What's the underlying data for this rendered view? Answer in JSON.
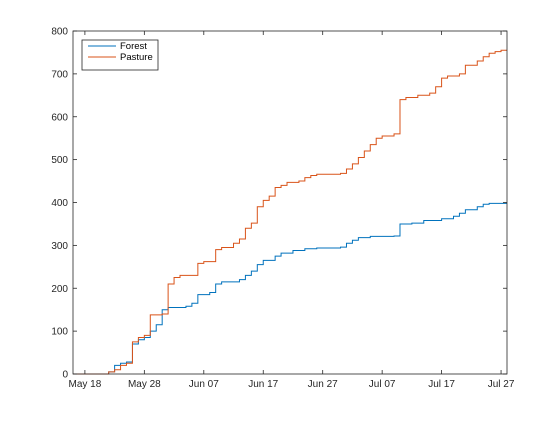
{
  "chart_data": {
    "type": "line",
    "step": true,
    "x_tick_labels": [
      "May 18",
      "May 28",
      "Jun 07",
      "Jun 17",
      "Jun 27",
      "Jul 07",
      "Jul 17",
      "Jul 27"
    ],
    "x_tick_dates": [
      "2015-05-18",
      "2015-05-28",
      "2015-06-07",
      "2015-06-17",
      "2015-06-27",
      "2015-07-07",
      "2015-07-17",
      "2015-07-27"
    ],
    "xlim": [
      "2015-05-16",
      "2015-07-28"
    ],
    "y_ticks": [
      0,
      100,
      200,
      300,
      400,
      500,
      600,
      700,
      800
    ],
    "ylim": [
      0,
      800
    ],
    "grid": false,
    "legend_position": "top-left",
    "series": [
      {
        "name": "Forest",
        "color": "#0072BD",
        "points": [
          [
            "2015-05-16",
            0
          ],
          [
            "2015-05-21",
            0
          ],
          [
            "2015-05-22",
            5
          ],
          [
            "2015-05-23",
            20
          ],
          [
            "2015-05-24",
            25
          ],
          [
            "2015-05-25",
            28
          ],
          [
            "2015-05-26",
            70
          ],
          [
            "2015-05-27",
            80
          ],
          [
            "2015-05-28",
            85
          ],
          [
            "2015-05-29",
            100
          ],
          [
            "2015-05-30",
            115
          ],
          [
            "2015-05-31",
            150
          ],
          [
            "2015-06-01",
            155
          ],
          [
            "2015-06-04",
            158
          ],
          [
            "2015-06-05",
            165
          ],
          [
            "2015-06-06",
            185
          ],
          [
            "2015-06-08",
            190
          ],
          [
            "2015-06-09",
            210
          ],
          [
            "2015-06-10",
            215
          ],
          [
            "2015-06-13",
            220
          ],
          [
            "2015-06-14",
            230
          ],
          [
            "2015-06-15",
            240
          ],
          [
            "2015-06-16",
            255
          ],
          [
            "2015-06-17",
            265
          ],
          [
            "2015-06-19",
            275
          ],
          [
            "2015-06-20",
            282
          ],
          [
            "2015-06-22",
            288
          ],
          [
            "2015-06-24",
            292
          ],
          [
            "2015-06-26",
            294
          ],
          [
            "2015-06-30",
            296
          ],
          [
            "2015-07-01",
            305
          ],
          [
            "2015-07-02",
            312
          ],
          [
            "2015-07-03",
            318
          ],
          [
            "2015-07-05",
            321
          ],
          [
            "2015-07-09",
            322
          ],
          [
            "2015-07-10",
            350
          ],
          [
            "2015-07-12",
            352
          ],
          [
            "2015-07-14",
            358
          ],
          [
            "2015-07-17",
            362
          ],
          [
            "2015-07-19",
            368
          ],
          [
            "2015-07-20",
            375
          ],
          [
            "2015-07-21",
            383
          ],
          [
            "2015-07-23",
            390
          ],
          [
            "2015-07-24",
            396
          ],
          [
            "2015-07-25",
            398
          ],
          [
            "2015-07-28",
            398
          ]
        ]
      },
      {
        "name": "Pasture",
        "color": "#D95319",
        "points": [
          [
            "2015-05-16",
            0
          ],
          [
            "2015-05-21",
            0
          ],
          [
            "2015-05-22",
            5
          ],
          [
            "2015-05-23",
            10
          ],
          [
            "2015-05-24",
            20
          ],
          [
            "2015-05-25",
            25
          ],
          [
            "2015-05-26",
            75
          ],
          [
            "2015-05-27",
            85
          ],
          [
            "2015-05-28",
            90
          ],
          [
            "2015-05-29",
            138
          ],
          [
            "2015-05-31",
            140
          ],
          [
            "2015-06-01",
            210
          ],
          [
            "2015-06-02",
            225
          ],
          [
            "2015-06-03",
            230
          ],
          [
            "2015-06-06",
            258
          ],
          [
            "2015-06-07",
            262
          ],
          [
            "2015-06-09",
            290
          ],
          [
            "2015-06-10",
            295
          ],
          [
            "2015-06-12",
            305
          ],
          [
            "2015-06-13",
            315
          ],
          [
            "2015-06-14",
            340
          ],
          [
            "2015-06-15",
            352
          ],
          [
            "2015-06-16",
            390
          ],
          [
            "2015-06-17",
            405
          ],
          [
            "2015-06-18",
            415
          ],
          [
            "2015-06-19",
            435
          ],
          [
            "2015-06-20",
            440
          ],
          [
            "2015-06-21",
            447
          ],
          [
            "2015-06-23",
            450
          ],
          [
            "2015-06-24",
            458
          ],
          [
            "2015-06-25",
            463
          ],
          [
            "2015-06-26",
            466
          ],
          [
            "2015-06-30",
            468
          ],
          [
            "2015-07-01",
            478
          ],
          [
            "2015-07-02",
            490
          ],
          [
            "2015-07-03",
            505
          ],
          [
            "2015-07-04",
            520
          ],
          [
            "2015-07-05",
            535
          ],
          [
            "2015-07-06",
            550
          ],
          [
            "2015-07-07",
            555
          ],
          [
            "2015-07-09",
            560
          ],
          [
            "2015-07-10",
            640
          ],
          [
            "2015-07-11",
            645
          ],
          [
            "2015-07-13",
            650
          ],
          [
            "2015-07-15",
            655
          ],
          [
            "2015-07-16",
            670
          ],
          [
            "2015-07-17",
            690
          ],
          [
            "2015-07-18",
            695
          ],
          [
            "2015-07-20",
            700
          ],
          [
            "2015-07-21",
            720
          ],
          [
            "2015-07-23",
            730
          ],
          [
            "2015-07-24",
            740
          ],
          [
            "2015-07-25",
            748
          ],
          [
            "2015-07-26",
            752
          ],
          [
            "2015-07-27",
            755
          ],
          [
            "2015-07-28",
            755
          ]
        ]
      }
    ]
  }
}
